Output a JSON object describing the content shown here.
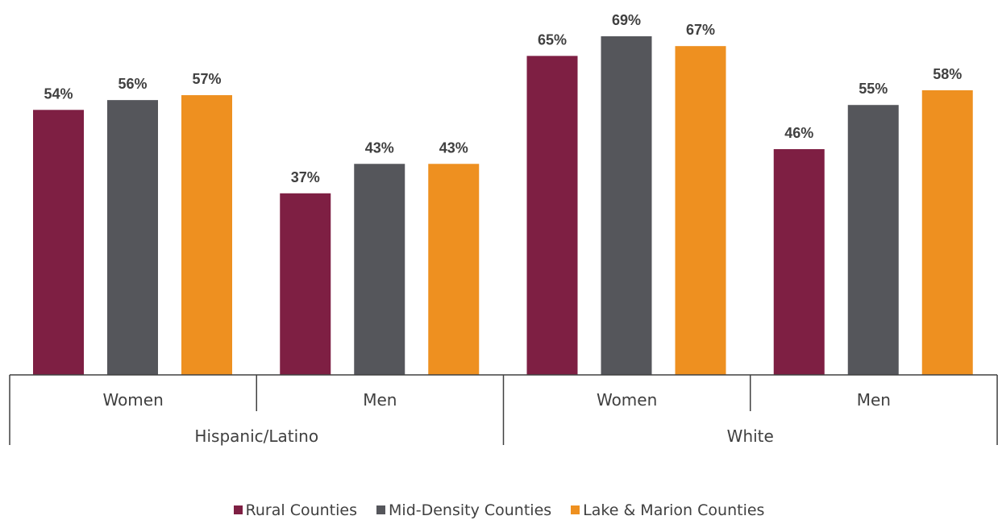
{
  "chart_data": {
    "type": "bar",
    "groups": [
      {
        "label": "Hispanic/Latino",
        "subgroups": [
          "Women",
          "Men"
        ]
      },
      {
        "label": "White",
        "subgroups": [
          "Women",
          "Men"
        ]
      }
    ],
    "categories": [
      "Women",
      "Men",
      "Women",
      "Men"
    ],
    "series": [
      {
        "name": "Rural Counties",
        "color": "#7e1f43",
        "values": [
          54,
          37,
          65,
          46
        ],
        "labels": [
          "54%",
          "37%",
          "65%",
          "46%"
        ]
      },
      {
        "name": "Mid-Density Counties",
        "color": "#55565b",
        "values": [
          56,
          43,
          69,
          55
        ],
        "labels": [
          "56%",
          "43%",
          "69%",
          "55%"
        ]
      },
      {
        "name": "Lake & Marion Counties",
        "color": "#ee9020",
        "values": [
          57,
          43,
          67,
          58
        ],
        "labels": [
          "57%",
          "43%",
          "67%",
          "58%"
        ]
      }
    ],
    "ylim": [
      0,
      69
    ],
    "grid": false,
    "legend_position": "bottom",
    "value_unit": "%"
  }
}
